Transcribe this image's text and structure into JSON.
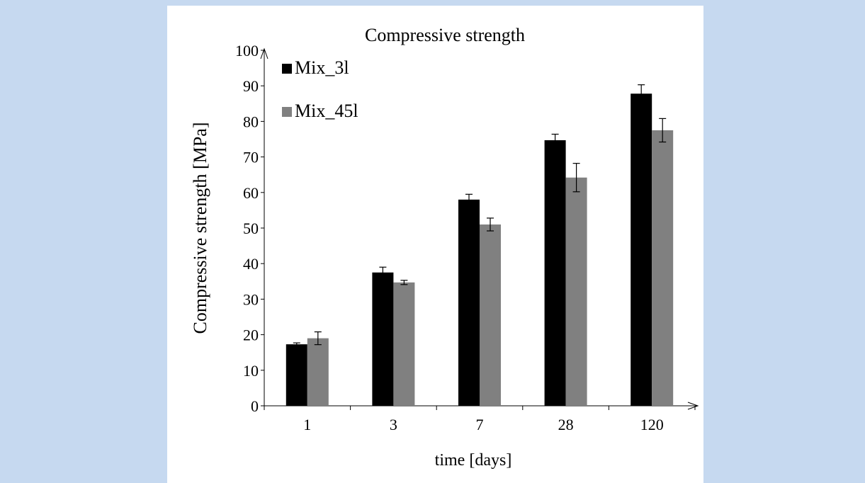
{
  "page": {
    "background_color": "#c6d9f0",
    "panel_color": "#ffffff"
  },
  "chart_data": {
    "type": "bar",
    "title": "Compressive strength",
    "xlabel": "time [days]",
    "ylabel": "Compressive strength [MPa]",
    "categories": [
      "1",
      "3",
      "7",
      "28",
      "120"
    ],
    "ylim": [
      0,
      100
    ],
    "yticks": [
      0,
      10,
      20,
      30,
      40,
      50,
      60,
      70,
      80,
      90,
      100
    ],
    "grid": false,
    "legend_position": "top-left",
    "series": [
      {
        "name": "Mix_3l",
        "color": "#000000",
        "values": [
          17.3,
          37.5,
          58.0,
          74.7,
          87.8
        ],
        "errors": [
          0.4,
          1.5,
          1.5,
          1.7,
          2.5
        ]
      },
      {
        "name": "Mix_45l",
        "color": "#808080",
        "values": [
          19.0,
          34.7,
          51.0,
          64.2,
          77.5
        ],
        "errors": [
          1.8,
          0.6,
          1.8,
          4.0,
          3.3
        ]
      }
    ]
  }
}
